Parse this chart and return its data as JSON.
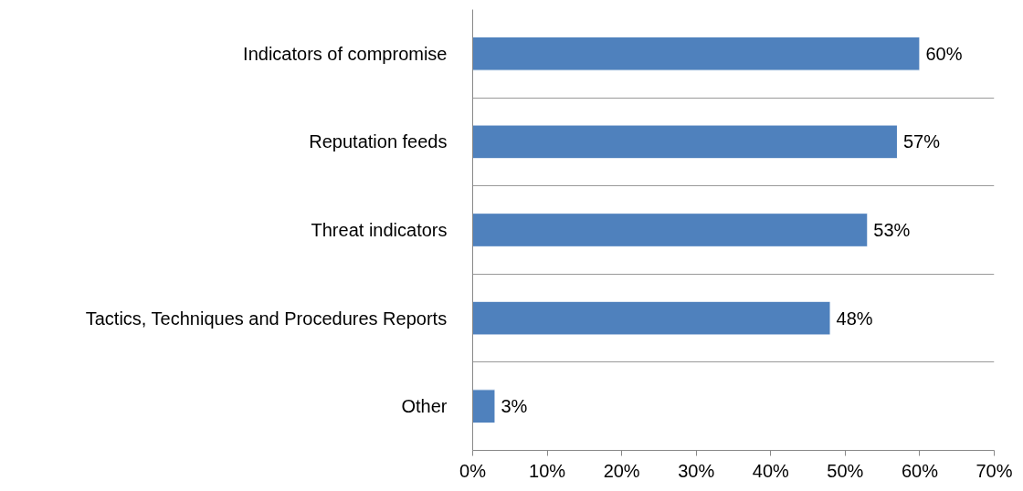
{
  "chart_data": {
    "type": "bar",
    "orientation": "horizontal",
    "categories": [
      "Indicators of compromise",
      "Reputation feeds",
      "Threat indicators",
      "Tactics, Techniques and Procedures Reports",
      "Other"
    ],
    "values": [
      60,
      57,
      53,
      48,
      3
    ],
    "value_labels": [
      "60%",
      "57%",
      "53%",
      "48%",
      "3%"
    ],
    "color": "#4f81bd",
    "xlim": [
      0,
      70
    ],
    "xticks": [
      {
        "value": 0,
        "label": "0%"
      },
      {
        "value": 10,
        "label": "10%"
      },
      {
        "value": 20,
        "label": "20%"
      },
      {
        "value": 30,
        "label": "30%"
      },
      {
        "value": 40,
        "label": "40%"
      },
      {
        "value": 50,
        "label": "50%"
      },
      {
        "value": 60,
        "label": "60%"
      },
      {
        "value": 70,
        "label": "70%"
      }
    ],
    "grid": "y"
  }
}
